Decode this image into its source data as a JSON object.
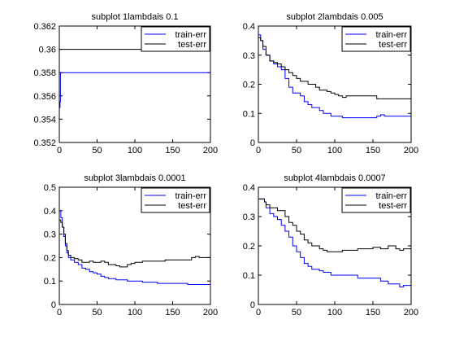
{
  "chart_data": [
    {
      "type": "line",
      "title": "subplot 1lambdais 0.1",
      "xlim": [
        0,
        200
      ],
      "ylim": [
        0.352,
        0.362
      ],
      "xticks": [
        "0",
        "50",
        "100",
        "150",
        "200"
      ],
      "yticks": [
        "0.352",
        "0.354",
        "0.356",
        "0.358",
        "0.36",
        "0.362"
      ],
      "legend_position": "top-right",
      "grid": false,
      "series": [
        {
          "name": "train-err",
          "color": "#0000ff",
          "points": [
            [
              0,
              0.355
            ],
            [
              1,
              0.3555
            ],
            [
              1.5,
              0.358
            ],
            [
              200,
              0.358
            ]
          ]
        },
        {
          "name": "test-err",
          "color": "#000000",
          "points": [
            [
              0,
              0.36
            ],
            [
              200,
              0.36
            ]
          ]
        }
      ]
    },
    {
      "type": "line",
      "title": "subplot 2lambdais 0.005",
      "xlim": [
        0,
        200
      ],
      "ylim": [
        0,
        0.4
      ],
      "xticks": [
        "0",
        "50",
        "100",
        "150",
        "200"
      ],
      "yticks": [
        "0",
        "0.1",
        "0.2",
        "0.3",
        "0.4"
      ],
      "legend_position": "top-right",
      "grid": false,
      "series": [
        {
          "name": "train-err",
          "color": "#0000ff",
          "points": [
            [
              0,
              0.37
            ],
            [
              3,
              0.35
            ],
            [
              6,
              0.32
            ],
            [
              10,
              0.3
            ],
            [
              15,
              0.28
            ],
            [
              20,
              0.27
            ],
            [
              25,
              0.26
            ],
            [
              30,
              0.25
            ],
            [
              35,
              0.22
            ],
            [
              40,
              0.19
            ],
            [
              45,
              0.17
            ],
            [
              50,
              0.17
            ],
            [
              55,
              0.16
            ],
            [
              60,
              0.14
            ],
            [
              65,
              0.13
            ],
            [
              70,
              0.12
            ],
            [
              75,
              0.12
            ],
            [
              80,
              0.11
            ],
            [
              85,
              0.1
            ],
            [
              90,
              0.1
            ],
            [
              95,
              0.09
            ],
            [
              100,
              0.09
            ],
            [
              110,
              0.085
            ],
            [
              120,
              0.085
            ],
            [
              150,
              0.085
            ],
            [
              155,
              0.09
            ],
            [
              160,
              0.095
            ],
            [
              165,
              0.09
            ],
            [
              200,
              0.09
            ]
          ]
        },
        {
          "name": "test-err",
          "color": "#000000",
          "points": [
            [
              0,
              0.36
            ],
            [
              3,
              0.35
            ],
            [
              6,
              0.33
            ],
            [
              10,
              0.3
            ],
            [
              15,
              0.28
            ],
            [
              20,
              0.275
            ],
            [
              25,
              0.27
            ],
            [
              30,
              0.26
            ],
            [
              35,
              0.25
            ],
            [
              40,
              0.24
            ],
            [
              45,
              0.23
            ],
            [
              50,
              0.22
            ],
            [
              55,
              0.21
            ],
            [
              60,
              0.21
            ],
            [
              65,
              0.2
            ],
            [
              70,
              0.2
            ],
            [
              75,
              0.19
            ],
            [
              80,
              0.18
            ],
            [
              85,
              0.18
            ],
            [
              90,
              0.175
            ],
            [
              95,
              0.17
            ],
            [
              100,
              0.165
            ],
            [
              105,
              0.16
            ],
            [
              110,
              0.155
            ],
            [
              115,
              0.16
            ],
            [
              120,
              0.16
            ],
            [
              150,
              0.16
            ],
            [
              155,
              0.15
            ],
            [
              200,
              0.15
            ]
          ]
        }
      ]
    },
    {
      "type": "line",
      "title": "subplot 3lambdais 0.0001",
      "xlim": [
        0,
        200
      ],
      "ylim": [
        0,
        0.5
      ],
      "xticks": [
        "0",
        "50",
        "100",
        "150",
        "200"
      ],
      "yticks": [
        "0",
        "0.1",
        "0.2",
        "0.3",
        "0.4",
        "0.5"
      ],
      "legend_position": "top-right",
      "grid": false,
      "series": [
        {
          "name": "train-err",
          "color": "#0000ff",
          "points": [
            [
              0,
              0.4
            ],
            [
              2,
              0.37
            ],
            [
              4,
              0.33
            ],
            [
              6,
              0.29
            ],
            [
              8,
              0.25
            ],
            [
              10,
              0.22
            ],
            [
              12,
              0.2
            ],
            [
              15,
              0.19
            ],
            [
              20,
              0.18
            ],
            [
              25,
              0.17
            ],
            [
              30,
              0.155
            ],
            [
              35,
              0.15
            ],
            [
              40,
              0.14
            ],
            [
              45,
              0.135
            ],
            [
              50,
              0.13
            ],
            [
              55,
              0.12
            ],
            [
              60,
              0.115
            ],
            [
              65,
              0.11
            ],
            [
              70,
              0.11
            ],
            [
              75,
              0.105
            ],
            [
              80,
              0.105
            ],
            [
              90,
              0.1
            ],
            [
              100,
              0.1
            ],
            [
              110,
              0.095
            ],
            [
              120,
              0.095
            ],
            [
              130,
              0.09
            ],
            [
              140,
              0.09
            ],
            [
              150,
              0.09
            ],
            [
              160,
              0.09
            ],
            [
              170,
              0.085
            ],
            [
              180,
              0.085
            ],
            [
              200,
              0.08
            ]
          ]
        },
        {
          "name": "test-err",
          "color": "#000000",
          "points": [
            [
              0,
              0.36
            ],
            [
              2,
              0.35
            ],
            [
              4,
              0.33
            ],
            [
              6,
              0.3
            ],
            [
              8,
              0.26
            ],
            [
              10,
              0.23
            ],
            [
              12,
              0.21
            ],
            [
              15,
              0.2
            ],
            [
              20,
              0.195
            ],
            [
              25,
              0.19
            ],
            [
              30,
              0.18
            ],
            [
              35,
              0.18
            ],
            [
              40,
              0.185
            ],
            [
              45,
              0.18
            ],
            [
              50,
              0.18
            ],
            [
              55,
              0.185
            ],
            [
              60,
              0.18
            ],
            [
              65,
              0.17
            ],
            [
              70,
              0.17
            ],
            [
              75,
              0.165
            ],
            [
              80,
              0.16
            ],
            [
              85,
              0.16
            ],
            [
              90,
              0.17
            ],
            [
              95,
              0.175
            ],
            [
              100,
              0.18
            ],
            [
              110,
              0.185
            ],
            [
              120,
              0.185
            ],
            [
              130,
              0.185
            ],
            [
              140,
              0.19
            ],
            [
              150,
              0.19
            ],
            [
              160,
              0.19
            ],
            [
              170,
              0.19
            ],
            [
              175,
              0.2
            ],
            [
              180,
              0.205
            ],
            [
              185,
              0.2
            ],
            [
              200,
              0.2
            ]
          ]
        }
      ]
    },
    {
      "type": "line",
      "title": "subplot 4lambdais 0.0007",
      "xlim": [
        0,
        200
      ],
      "ylim": [
        0,
        0.4
      ],
      "xticks": [
        "0",
        "50",
        "100",
        "150",
        "200"
      ],
      "yticks": [
        "0",
        "0.1",
        "0.2",
        "0.3",
        "0.4"
      ],
      "legend_position": "top-right",
      "grid": false,
      "series": [
        {
          "name": "train-err",
          "color": "#0000ff",
          "points": [
            [
              0,
              0.36
            ],
            [
              5,
              0.36
            ],
            [
              8,
              0.35
            ],
            [
              10,
              0.33
            ],
            [
              15,
              0.31
            ],
            [
              20,
              0.3
            ],
            [
              25,
              0.29
            ],
            [
              30,
              0.27
            ],
            [
              35,
              0.25
            ],
            [
              40,
              0.23
            ],
            [
              45,
              0.2
            ],
            [
              50,
              0.18
            ],
            [
              55,
              0.16
            ],
            [
              60,
              0.14
            ],
            [
              65,
              0.13
            ],
            [
              70,
              0.12
            ],
            [
              75,
              0.12
            ],
            [
              80,
              0.115
            ],
            [
              85,
              0.11
            ],
            [
              90,
              0.11
            ],
            [
              95,
              0.1
            ],
            [
              100,
              0.1
            ],
            [
              110,
              0.1
            ],
            [
              120,
              0.1
            ],
            [
              130,
              0.09
            ],
            [
              140,
              0.09
            ],
            [
              150,
              0.09
            ],
            [
              160,
              0.08
            ],
            [
              170,
              0.07
            ],
            [
              180,
              0.07
            ],
            [
              185,
              0.06
            ],
            [
              190,
              0.065
            ],
            [
              200,
              0.065
            ]
          ]
        },
        {
          "name": "test-err",
          "color": "#000000",
          "points": [
            [
              0,
              0.36
            ],
            [
              5,
              0.36
            ],
            [
              8,
              0.35
            ],
            [
              10,
              0.34
            ],
            [
              15,
              0.33
            ],
            [
              20,
              0.33
            ],
            [
              25,
              0.32
            ],
            [
              30,
              0.32
            ],
            [
              35,
              0.3
            ],
            [
              40,
              0.28
            ],
            [
              45,
              0.27
            ],
            [
              50,
              0.25
            ],
            [
              55,
              0.24
            ],
            [
              60,
              0.22
            ],
            [
              65,
              0.21
            ],
            [
              70,
              0.2
            ],
            [
              75,
              0.2
            ],
            [
              80,
              0.19
            ],
            [
              85,
              0.185
            ],
            [
              90,
              0.18
            ],
            [
              100,
              0.18
            ],
            [
              110,
              0.185
            ],
            [
              120,
              0.185
            ],
            [
              130,
              0.19
            ],
            [
              140,
              0.19
            ],
            [
              150,
              0.195
            ],
            [
              160,
              0.19
            ],
            [
              170,
              0.2
            ],
            [
              180,
              0.19
            ],
            [
              185,
              0.185
            ],
            [
              190,
              0.19
            ],
            [
              200,
              0.19
            ]
          ]
        }
      ]
    }
  ]
}
